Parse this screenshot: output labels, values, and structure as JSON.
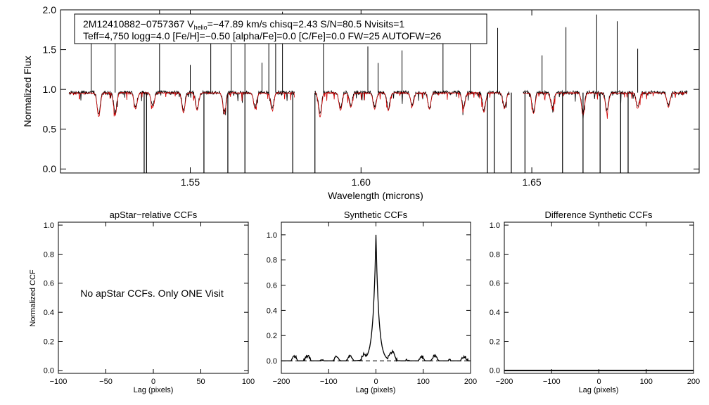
{
  "colors": {
    "background": "#ffffff",
    "axes": "#000000",
    "observed": "#000000",
    "model": "#d00000"
  },
  "chart_data": [
    {
      "type": "line",
      "title": "",
      "annotation": {
        "line1_prefix": "2M12410882−0757367  V",
        "line1_sub": "helio",
        "line1_suffix": "=−47.89 km/s  chisq=2.43  S/N=80.5  Nvisits=1",
        "line2": "Teff=4,750 logg=4.0 [Fe/H]=−0.50 [alpha/Fe]=0.0 [C/Fe]=0.0 FW=25 AUTOFW=26"
      },
      "xlabel": "Wavelength (microns)",
      "ylabel": "Normalized Flux",
      "xlim": [
        1.512,
        1.699
      ],
      "ylim": [
        -0.05,
        2.0
      ],
      "xticks": [
        {
          "v": 1.55,
          "label": "1.55"
        },
        {
          "v": 1.6,
          "label": "1.60"
        },
        {
          "v": 1.65,
          "label": "1.65"
        }
      ],
      "yticks": [
        {
          "v": 0.0,
          "label": "0.0"
        },
        {
          "v": 0.5,
          "label": "0.5"
        },
        {
          "v": 1.0,
          "label": "1.0"
        },
        {
          "v": 1.5,
          "label": "1.5"
        },
        {
          "v": 2.0,
          "label": "2.0"
        }
      ],
      "chip_ranges": [
        [
          1.5145,
          1.5805
        ],
        [
          1.5865,
          1.6435
        ],
        [
          1.6475,
          1.6955
        ]
      ],
      "series": [
        {
          "name": "observed spectrum",
          "color": "#000000",
          "continuum": 0.96,
          "noise": 0.025,
          "seed": 7,
          "spikes": [
            1.521,
            1.528,
            1.541,
            1.55,
            1.556,
            1.562,
            1.566,
            1.571,
            1.573,
            1.575,
            1.577,
            1.589,
            1.602,
            1.605,
            1.612,
            1.624,
            1.632,
            1.64,
            1.653,
            1.66,
            1.669,
            1.675,
            1.681
          ],
          "dropouts": [
            1.5365,
            1.5372,
            1.554,
            1.561,
            1.566,
            1.58,
            1.5865,
            1.637,
            1.639,
            1.644,
            1.648,
            1.659,
            1.665,
            1.67,
            1.676,
            1.6782
          ]
        },
        {
          "name": "synthetic model",
          "color": "#d00000",
          "continuum": 0.955,
          "seed": 11,
          "lines": [
            [
              1.5232,
              0.7
            ],
            [
              1.528,
              0.72
            ],
            [
              1.534,
              0.8
            ],
            [
              1.539,
              0.82
            ],
            [
              1.548,
              0.75
            ],
            [
              1.552,
              0.78
            ],
            [
              1.56,
              0.74
            ],
            [
              1.569,
              0.8
            ],
            [
              1.574,
              0.78
            ],
            [
              1.588,
              0.7
            ],
            [
              1.594,
              0.78
            ],
            [
              1.597,
              0.82
            ],
            [
              1.604,
              0.8
            ],
            [
              1.608,
              0.78
            ],
            [
              1.615,
              0.83
            ],
            [
              1.62,
              0.8
            ],
            [
              1.63,
              0.8
            ],
            [
              1.636,
              0.76
            ],
            [
              1.642,
              0.8
            ],
            [
              1.6505,
              0.74
            ],
            [
              1.656,
              0.8
            ],
            [
              1.665,
              0.72
            ],
            [
              1.672,
              0.75
            ],
            [
              1.681,
              0.8
            ],
            [
              1.69,
              0.82
            ]
          ]
        }
      ]
    },
    {
      "type": "line",
      "title": "apStar−relative CCFs",
      "xlabel": "Lag (pixels)",
      "ylabel": "Normalized CCF",
      "xlim": [
        -100,
        100
      ],
      "ylim": [
        -0.02,
        1.02
      ],
      "xticks": [
        {
          "v": -100,
          "label": "−100"
        },
        {
          "v": -50,
          "label": "−50"
        },
        {
          "v": 0,
          "label": "0"
        },
        {
          "v": 50,
          "label": "50"
        },
        {
          "v": 100,
          "label": "100"
        }
      ],
      "yticks": [
        {
          "v": 0.0,
          "label": "0.0"
        },
        {
          "v": 0.2,
          "label": "0.2"
        },
        {
          "v": 0.4,
          "label": "0.4"
        },
        {
          "v": 0.6,
          "label": "0.6"
        },
        {
          "v": 0.8,
          "label": "0.8"
        },
        {
          "v": 1.0,
          "label": "1.0"
        }
      ],
      "message": "No apStar CCFs.  Only ONE Visit",
      "series": []
    },
    {
      "type": "line",
      "title": "Synthetic CCFs",
      "xlabel": "Lag (pixels)",
      "ylabel": "",
      "xlim": [
        -200,
        200
      ],
      "ylim": [
        -0.1,
        1.1
      ],
      "xticks": [
        {
          "v": -200,
          "label": "−200"
        },
        {
          "v": -100,
          "label": "−100"
        },
        {
          "v": 0,
          "label": "0"
        },
        {
          "v": 100,
          "label": "100"
        },
        {
          "v": 200,
          "label": "200"
        }
      ],
      "yticks": [
        {
          "v": 0.0,
          "label": "0.0"
        },
        {
          "v": 0.2,
          "label": "0.2"
        },
        {
          "v": 0.4,
          "label": "0.4"
        },
        {
          "v": 0.6,
          "label": "0.6"
        },
        {
          "v": 0.8,
          "label": "0.8"
        },
        {
          "v": 1.0,
          "label": "1.0"
        }
      ],
      "zero_line": 0.0,
      "series": [
        {
          "name": "synthetic CCF",
          "color": "#000000",
          "peak_lag": 0,
          "peak": 1.0,
          "width": 6,
          "baseline": -0.01,
          "seed": 3
        }
      ]
    },
    {
      "type": "line",
      "title": "Difference Synthetic CCFs",
      "xlabel": "Lag (pixels)",
      "ylabel": "",
      "xlim": [
        -200,
        200
      ],
      "ylim": [
        -0.02,
        1.02
      ],
      "xticks": [
        {
          "v": -200,
          "label": "−200"
        },
        {
          "v": -100,
          "label": "−100"
        },
        {
          "v": 0,
          "label": "0"
        },
        {
          "v": 100,
          "label": "100"
        },
        {
          "v": 200,
          "label": "200"
        }
      ],
      "yticks": [
        {
          "v": 0.0,
          "label": "0.0"
        },
        {
          "v": 0.2,
          "label": "0.2"
        },
        {
          "v": 0.4,
          "label": "0.4"
        },
        {
          "v": 0.6,
          "label": "0.6"
        },
        {
          "v": 0.8,
          "label": "0.8"
        },
        {
          "v": 1.0,
          "label": "1.0"
        }
      ],
      "series": [
        {
          "name": "difference CCF",
          "color": "#000000",
          "constant": 0.0
        }
      ]
    }
  ]
}
